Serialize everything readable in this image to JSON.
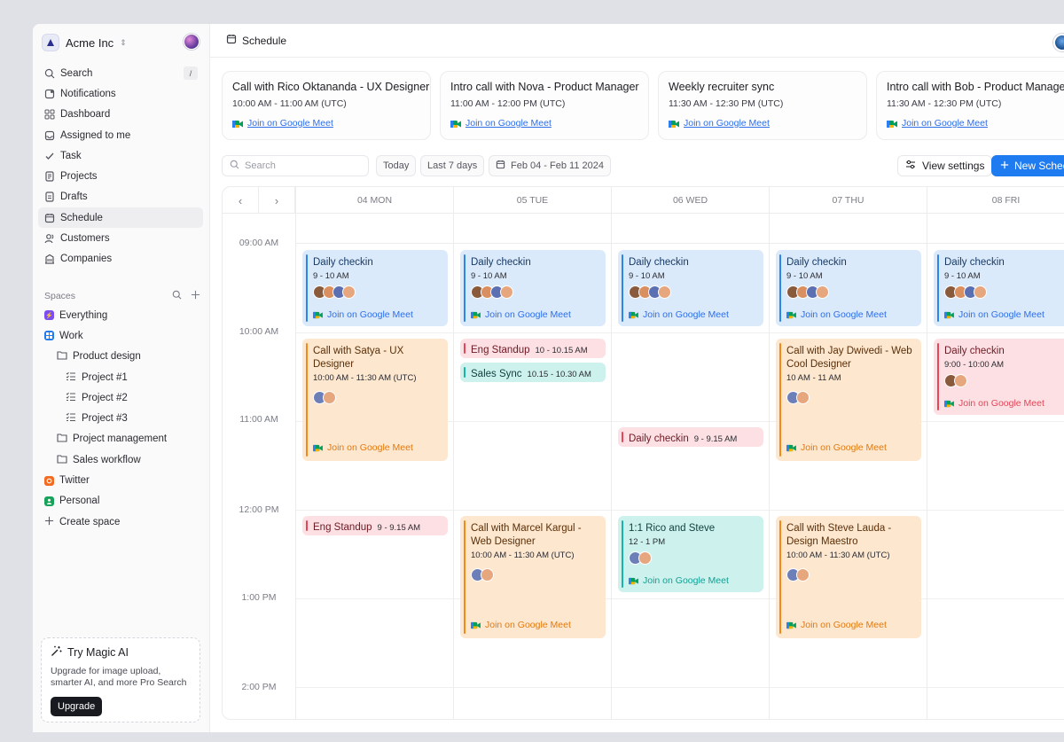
{
  "workspace": {
    "name": "Acme Inc"
  },
  "sidebar": {
    "items": [
      {
        "label": "Search",
        "icon": "search-icon",
        "shortcut": "/"
      },
      {
        "label": "Notifications",
        "icon": "bell-icon"
      },
      {
        "label": "Dashboard",
        "icon": "grid-icon"
      },
      {
        "label": "Assigned to me",
        "icon": "inbox-icon"
      },
      {
        "label": "Task",
        "icon": "check-icon"
      },
      {
        "label": "Projects",
        "icon": "document-icon"
      },
      {
        "label": "Drafts",
        "icon": "draft-icon"
      },
      {
        "label": "Schedule",
        "icon": "calendar-icon",
        "active": true
      },
      {
        "label": "Customers",
        "icon": "users-icon"
      },
      {
        "label": "Companies",
        "icon": "building-icon"
      }
    ],
    "spaces_label": "Spaces",
    "spaces": [
      {
        "label": "Everything",
        "color": "#7b4ef0"
      },
      {
        "label": "Work",
        "color": "#1e7bf0"
      },
      {
        "label": "Product design"
      },
      {
        "label": "Project #1"
      },
      {
        "label": "Project #2"
      },
      {
        "label": "Project #3"
      },
      {
        "label": "Project management"
      },
      {
        "label": "Sales workflow"
      },
      {
        "label": "Twitter",
        "color": "#f26b21"
      },
      {
        "label": "Personal",
        "color": "#19a35a"
      },
      {
        "label": "Create space"
      }
    ],
    "magic": {
      "title": "Try Magic AI",
      "description": "Upgrade for image upload, smarter AI, and more Pro Search",
      "button": "Upgrade"
    }
  },
  "header": {
    "title": "Schedule"
  },
  "upcoming": [
    {
      "title": "Call with Rico Oktananda - UX Designer",
      "time": "10:00 AM - 11:00 AM (UTC)",
      "link": "Join on Google Meet"
    },
    {
      "title": "Intro call with Nova - Product Manager",
      "time": "11:00 AM - 12:00 PM (UTC)",
      "link": "Join on Google Meet"
    },
    {
      "title": "Weekly recruiter sync",
      "time": "11:30 AM - 12:30 PM (UTC)",
      "link": "Join on Google Meet"
    },
    {
      "title": "Intro call with Bob - Product Manager",
      "time": "11:30 AM - 12:30 PM (UTC)",
      "link": "Join on Google Meet"
    }
  ],
  "toolbar": {
    "search_placeholder": "Search",
    "today": "Today",
    "last7": "Last 7 days",
    "range": "Feb 04 - Feb 11 2024",
    "view_settings": "View settings",
    "new_schedule": "New Schedule"
  },
  "calendar": {
    "days": [
      "04 MON",
      "05 TUE",
      "06 WED",
      "07 THU",
      "08 FRI"
    ],
    "times": [
      "09:00 AM",
      "10:00 AM",
      "11:00 AM",
      "12:00 PM",
      "1:00 PM",
      "2:00 PM"
    ],
    "link_label": "Join on Google Meet",
    "colors": {
      "blue": "#2e86e6",
      "orange": "#f08a1c",
      "red": "#e5475a",
      "teal": "#19b3a7"
    },
    "events": {
      "mon_checkin": {
        "title": "Daily checkin",
        "time": "9 - 10 AM"
      },
      "mon_satya": {
        "title": "Call with Satya - UX Designer",
        "time": "10:00 AM - 11:30 AM (UTC)"
      },
      "mon_standup": {
        "title": "Eng Standup",
        "time": "9 - 9.15 AM"
      },
      "tue_checkin": {
        "title": "Daily checkin",
        "time": "9 - 10 AM"
      },
      "tue_standup": {
        "title": "Eng Standup",
        "time": "10 - 10.15 AM"
      },
      "tue_sales": {
        "title": "Sales Sync",
        "time": "10.15 - 10.30 AM"
      },
      "tue_marcel": {
        "title": "Call with Marcel Kargul - Web Designer",
        "time": "10:00 AM - 11:30 AM (UTC)"
      },
      "wed_checkin": {
        "title": "Daily checkin",
        "time": "9 - 10 AM"
      },
      "wed_checkin2": {
        "title": "Daily checkin",
        "time": "9 - 9.15 AM"
      },
      "wed_rico": {
        "title": "1:1 Rico and Steve",
        "time": "12 - 1 PM"
      },
      "thu_checkin": {
        "title": "Daily checkin",
        "time": "9 - 10 AM"
      },
      "thu_jay": {
        "title": "Call with Jay Dwivedi - Web Cool Designer",
        "time": "10 AM - 11 AM"
      },
      "thu_steve": {
        "title": "Call with Steve Lauda - Design Maestro",
        "time": "10:00 AM - 11:30 AM (UTC)"
      },
      "fri_checkin": {
        "title": "Daily checkin",
        "time": "9 - 10 AM"
      },
      "fri_checkin2": {
        "title": "Daily checkin",
        "time": "9:00 - 10:00 AM"
      }
    }
  }
}
